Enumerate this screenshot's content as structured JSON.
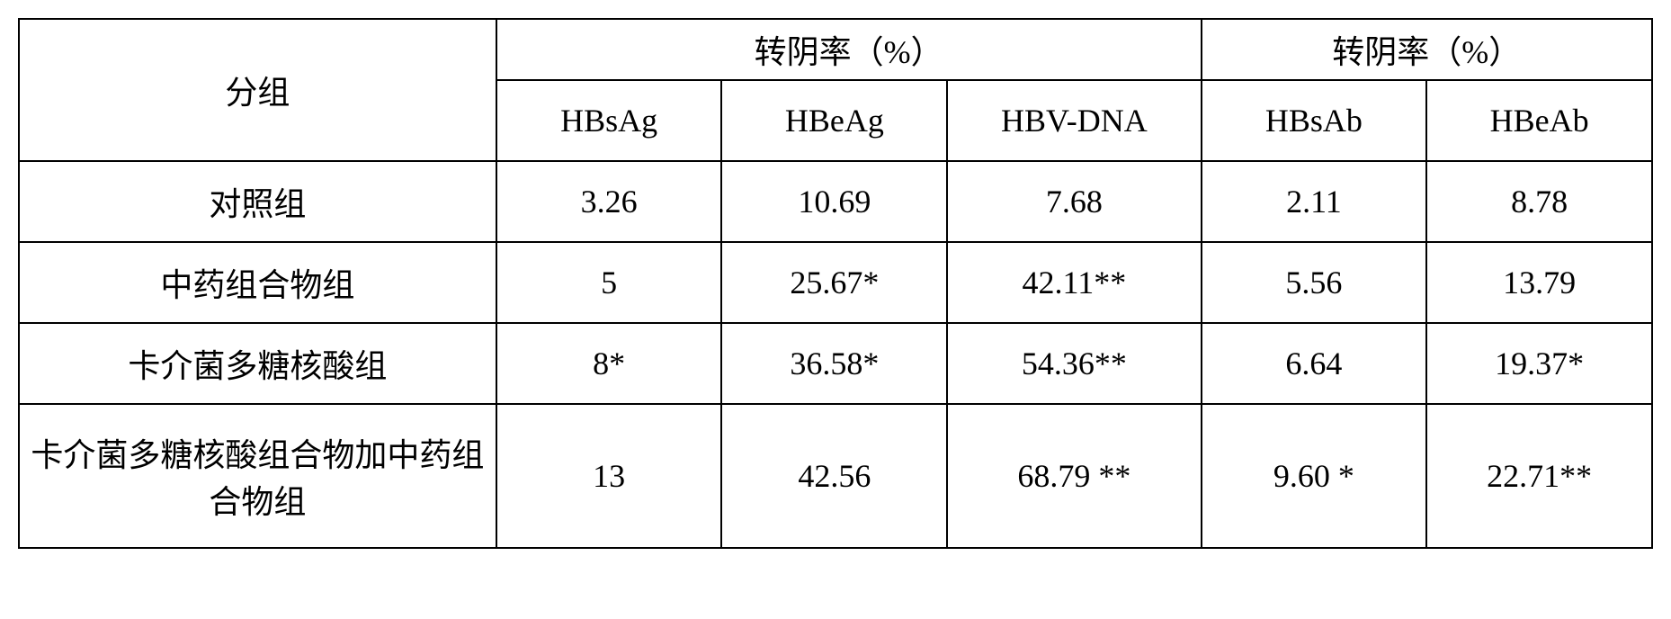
{
  "header": {
    "group": "分组",
    "rate1_label": "转阴率（%）",
    "rate2_label": "转阴率（%）",
    "sub": {
      "hbsag": "HBsAg",
      "hbeag": "HBeAg",
      "hbvdna": "HBV-DNA",
      "hbsab": "HBsAb",
      "hbeab": "HBeAb"
    }
  },
  "rows": [
    {
      "group": "对照组",
      "hbsag": "3.26",
      "hbeag": "10.69",
      "hbvdna": "7.68",
      "hbsab": "2.11",
      "hbeab": "8.78"
    },
    {
      "group": "中药组合物组",
      "hbsag": "5",
      "hbeag": "25.67*",
      "hbvdna": "42.11**",
      "hbsab": "5.56",
      "hbeab": "13.79"
    },
    {
      "group": "卡介菌多糖核酸组",
      "hbsag": "8*",
      "hbeag": "36.58*",
      "hbvdna": "54.36**",
      "hbsab": "6.64",
      "hbeab": "19.37*"
    },
    {
      "group": "卡介菌多糖核酸组合物加中药组合物组",
      "hbsag": "13",
      "hbeag": "42.56",
      "hbvdna": "68.79 **",
      "hbsab": "9.60 *",
      "hbeab": "22.71**"
    }
  ],
  "style": {
    "border_color": "#000000",
    "background": "#ffffff",
    "font_size_pt": 27,
    "cn_font": "SimSun",
    "en_font": "Times New Roman"
  }
}
